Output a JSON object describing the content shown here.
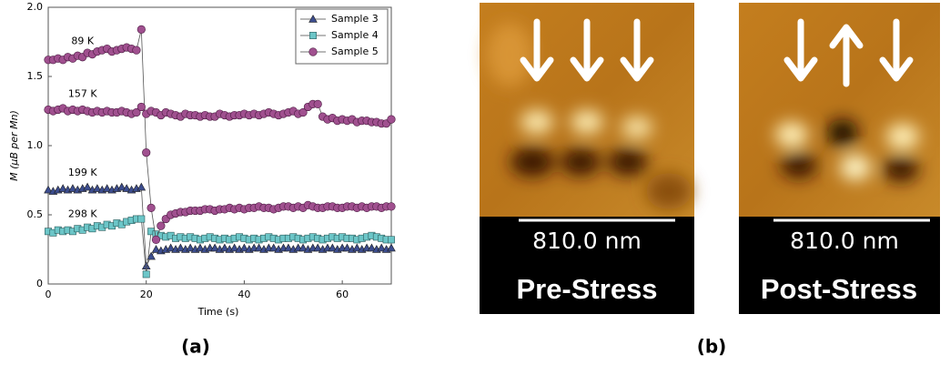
{
  "chart_data": {
    "type": "line",
    "x_label": "Time (s)",
    "y_label": "M (μB per Mn)",
    "xlim": [
      0,
      70
    ],
    "xticks": [
      0,
      20,
      40,
      60
    ],
    "ylim": [
      0,
      2.0
    ],
    "yticks": [
      0,
      0.5,
      {
        "value": 1.0,
        "label": "1.0"
      },
      1.5,
      {
        "value": 2.0,
        "label": "2.0"
      }
    ],
    "legend": "upper right",
    "x": [
      0,
      1,
      2,
      3,
      4,
      5,
      6,
      7,
      8,
      9,
      10,
      11,
      12,
      13,
      14,
      15,
      16,
      17,
      18,
      19,
      20,
      21,
      22,
      23,
      24,
      25,
      26,
      27,
      28,
      29,
      30,
      31,
      32,
      33,
      34,
      35,
      36,
      37,
      38,
      39,
      40,
      41,
      42,
      43,
      44,
      45,
      46,
      47,
      48,
      49,
      50,
      51,
      52,
      53,
      54,
      55,
      56,
      57,
      58,
      59,
      60,
      61,
      62,
      63,
      64,
      65,
      66,
      67,
      68,
      69,
      70
    ],
    "series": [
      {
        "name": "Sample 3",
        "color": "#3c4d8f",
        "marker": "triangle",
        "lines": [
          {
            "label": "199 K",
            "values": [
              0.68,
              0.67,
              0.68,
              0.69,
              0.68,
              0.69,
              0.68,
              0.69,
              0.7,
              0.68,
              0.69,
              0.68,
              0.69,
              0.68,
              0.69,
              0.7,
              0.69,
              0.68,
              0.69,
              0.7,
              0.13,
              0.2,
              0.25,
              0.24,
              0.25,
              0.26,
              0.25,
              0.26,
              0.25,
              0.26,
              0.25,
              0.26,
              0.25,
              0.26,
              0.26,
              0.25,
              0.26,
              0.25,
              0.26,
              0.25,
              0.26,
              0.25,
              0.26,
              0.26,
              0.25,
              0.26,
              0.26,
              0.25,
              0.26,
              0.26,
              0.25,
              0.26,
              0.26,
              0.25,
              0.26,
              0.26,
              0.25,
              0.26,
              0.26,
              0.25,
              0.26,
              0.26,
              0.25,
              0.26,
              0.25,
              0.26,
              0.26,
              0.25,
              0.26,
              0.25,
              0.26
            ]
          }
        ]
      },
      {
        "name": "Sample 4",
        "color": "#6cc6c8",
        "marker": "square",
        "lines": [
          {
            "label": "298 K",
            "values": [
              0.38,
              0.37,
              0.39,
              0.38,
              0.39,
              0.38,
              0.4,
              0.39,
              0.41,
              0.4,
              0.42,
              0.41,
              0.43,
              0.42,
              0.44,
              0.43,
              0.45,
              0.46,
              0.47,
              0.47,
              0.07,
              0.38,
              0.36,
              0.35,
              0.34,
              0.35,
              0.33,
              0.34,
              0.33,
              0.34,
              0.33,
              0.32,
              0.33,
              0.34,
              0.33,
              0.32,
              0.33,
              0.32,
              0.33,
              0.34,
              0.33,
              0.32,
              0.33,
              0.32,
              0.33,
              0.34,
              0.33,
              0.32,
              0.33,
              0.33,
              0.34,
              0.33,
              0.32,
              0.33,
              0.34,
              0.33,
              0.32,
              0.33,
              0.34,
              0.33,
              0.34,
              0.33,
              0.33,
              0.32,
              0.33,
              0.34,
              0.35,
              0.34,
              0.33,
              0.32,
              0.32
            ]
          }
        ]
      },
      {
        "name": "Sample 5",
        "color": "#a0508f",
        "marker": "circle",
        "lines": [
          {
            "label": "89 K",
            "values": [
              1.62,
              1.62,
              1.63,
              1.62,
              1.64,
              1.63,
              1.65,
              1.64,
              1.67,
              1.66,
              1.68,
              1.69,
              1.7,
              1.68,
              1.69,
              1.7,
              1.71,
              1.7,
              1.69,
              1.84,
              0.95,
              0.55,
              0.32,
              0.42,
              0.47,
              0.5,
              0.51,
              0.52,
              0.52,
              0.53,
              0.53,
              0.53,
              0.54,
              0.54,
              0.53,
              0.54,
              0.54,
              0.55,
              0.54,
              0.55,
              0.54,
              0.55,
              0.55,
              0.56,
              0.55,
              0.55,
              0.54,
              0.55,
              0.56,
              0.56,
              0.55,
              0.56,
              0.55,
              0.57,
              0.56,
              0.55,
              0.55,
              0.56,
              0.56,
              0.55,
              0.55,
              0.56,
              0.56,
              0.55,
              0.56,
              0.55,
              0.56,
              0.56,
              0.55,
              0.56,
              0.56
            ]
          },
          {
            "label": "157 K",
            "values": [
              1.26,
              1.25,
              1.26,
              1.27,
              1.25,
              1.26,
              1.25,
              1.26,
              1.25,
              1.24,
              1.25,
              1.24,
              1.25,
              1.24,
              1.24,
              1.25,
              1.24,
              1.23,
              1.24,
              1.28,
              1.23,
              1.25,
              1.24,
              1.22,
              1.24,
              1.23,
              1.22,
              1.21,
              1.23,
              1.22,
              1.22,
              1.21,
              1.22,
              1.21,
              1.21,
              1.23,
              1.22,
              1.21,
              1.22,
              1.22,
              1.23,
              1.22,
              1.23,
              1.22,
              1.23,
              1.24,
              1.23,
              1.22,
              1.23,
              1.24,
              1.25,
              1.23,
              1.24,
              1.28,
              1.3,
              1.3,
              1.21,
              1.19,
              1.2,
              1.18,
              1.19,
              1.18,
              1.19,
              1.17,
              1.18,
              1.18,
              1.17,
              1.17,
              1.16,
              1.16,
              1.19
            ]
          }
        ]
      }
    ]
  },
  "images": [
    {
      "scale_label": "810.0 nm",
      "label": "Pre-Stress"
    },
    {
      "scale_label": "810.0 nm",
      "label": "Post-Stress"
    }
  ],
  "panel_labels": [
    "(a)",
    "(b)"
  ]
}
